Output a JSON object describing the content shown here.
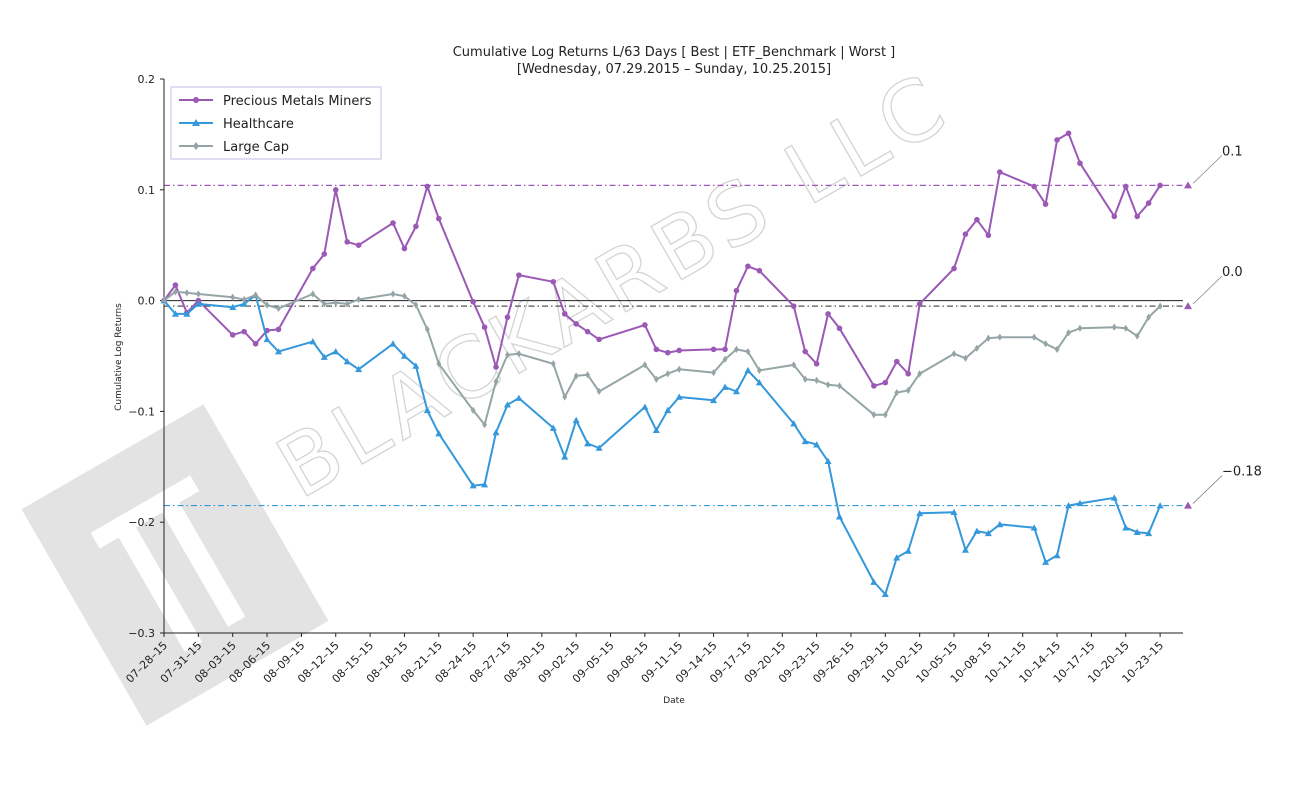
{
  "watermark": {
    "text": "BLACKARBS LLC"
  },
  "chart_data": {
    "type": "line",
    "title": "Cumulative Log Returns L/63 Days [ Best | ETF_Benchmark | Worst ]",
    "subtitle": "[Wednesday, 07.29.2015 – Sunday, 10.25.2015]",
    "xlabel": "Date",
    "ylabel": "Cumulative Log Returns",
    "ylim": [
      -0.3,
      0.2
    ],
    "yticks": [
      "0.2",
      "0.1",
      "0.0",
      "−0.1",
      "−0.2",
      "−0.3"
    ],
    "xtick_labels": [
      "07–28–15",
      "07–31–15",
      "08–03–15",
      "08–06–15",
      "08–09–15",
      "08–12–15",
      "08–15–15",
      "08–18–15",
      "08–21–15",
      "08–24–15",
      "08–27–15",
      "08–30–15",
      "09–02–15",
      "09–05–15",
      "09–08–15",
      "09–11–15",
      "09–14–15",
      "09–17–15",
      "09–20–15",
      "09–23–15",
      "09–26–15",
      "09–29–15",
      "10–02–15",
      "10–05–15",
      "10–08–15",
      "10–11–15",
      "10–14–15",
      "10–17–15",
      "10–20–15",
      "10–23–15"
    ],
    "x_start": "2015-07-28",
    "x_end": "2015-10-25",
    "legend_position": "top-left",
    "zero_line": true,
    "series": [
      {
        "name": "Precious Metals Miners",
        "color": "#9b59b6",
        "marker": "circle",
        "points": [
          [
            "2015-07-28",
            0.0
          ],
          [
            "2015-07-29",
            0.014
          ],
          [
            "2015-07-30",
            -0.011
          ],
          [
            "2015-07-31",
            0.0
          ],
          [
            "2015-08-03",
            -0.031
          ],
          [
            "2015-08-04",
            -0.028
          ],
          [
            "2015-08-05",
            -0.039
          ],
          [
            "2015-08-06",
            -0.027
          ],
          [
            "2015-08-07",
            -0.026
          ],
          [
            "2015-08-10",
            0.029
          ],
          [
            "2015-08-11",
            0.042
          ],
          [
            "2015-08-12",
            0.1
          ],
          [
            "2015-08-13",
            0.053
          ],
          [
            "2015-08-14",
            0.05
          ],
          [
            "2015-08-17",
            0.07
          ],
          [
            "2015-08-18",
            0.047
          ],
          [
            "2015-08-19",
            0.067
          ],
          [
            "2015-08-20",
            0.103
          ],
          [
            "2015-08-21",
            0.074
          ],
          [
            "2015-08-24",
            -0.001
          ],
          [
            "2015-08-25",
            -0.024
          ],
          [
            "2015-08-26",
            -0.06
          ],
          [
            "2015-08-27",
            -0.015
          ],
          [
            "2015-08-28",
            0.023
          ],
          [
            "2015-08-31",
            0.017
          ],
          [
            "2015-09-01",
            -0.012
          ],
          [
            "2015-09-02",
            -0.021
          ],
          [
            "2015-09-03",
            -0.028
          ],
          [
            "2015-09-04",
            -0.035
          ],
          [
            "2015-09-08",
            -0.022
          ],
          [
            "2015-09-09",
            -0.044
          ],
          [
            "2015-09-10",
            -0.047
          ],
          [
            "2015-09-11",
            -0.045
          ],
          [
            "2015-09-14",
            -0.044
          ],
          [
            "2015-09-15",
            -0.044
          ],
          [
            "2015-09-16",
            0.009
          ],
          [
            "2015-09-17",
            0.031
          ],
          [
            "2015-09-18",
            0.027
          ],
          [
            "2015-09-21",
            -0.005
          ],
          [
            "2015-09-22",
            -0.046
          ],
          [
            "2015-09-23",
            -0.057
          ],
          [
            "2015-09-24",
            -0.012
          ],
          [
            "2015-09-25",
            -0.025
          ],
          [
            "2015-09-28",
            -0.077
          ],
          [
            "2015-09-29",
            -0.074
          ],
          [
            "2015-09-30",
            -0.055
          ],
          [
            "2015-10-01",
            -0.066
          ],
          [
            "2015-10-02",
            -0.003
          ],
          [
            "2015-10-05",
            0.029
          ],
          [
            "2015-10-06",
            0.06
          ],
          [
            "2015-10-07",
            0.073
          ],
          [
            "2015-10-08",
            0.059
          ],
          [
            "2015-10-09",
            0.116
          ],
          [
            "2015-10-12",
            0.103
          ],
          [
            "2015-10-13",
            0.087
          ],
          [
            "2015-10-14",
            0.145
          ],
          [
            "2015-10-15",
            0.151
          ],
          [
            "2015-10-16",
            0.124
          ],
          [
            "2015-10-19",
            0.076
          ],
          [
            "2015-10-20",
            0.103
          ],
          [
            "2015-10-21",
            0.076
          ],
          [
            "2015-10-22",
            0.088
          ],
          [
            "2015-10-23",
            0.104
          ]
        ]
      },
      {
        "name": "Healthcare",
        "color": "#3498db",
        "marker": "triangle",
        "points": [
          [
            "2015-07-28",
            0.0
          ],
          [
            "2015-07-29",
            -0.012
          ],
          [
            "2015-07-30",
            -0.012
          ],
          [
            "2015-07-31",
            -0.003
          ],
          [
            "2015-08-03",
            -0.006
          ],
          [
            "2015-08-04",
            -0.003
          ],
          [
            "2015-08-05",
            0.005
          ],
          [
            "2015-08-06",
            -0.035
          ],
          [
            "2015-08-07",
            -0.046
          ],
          [
            "2015-08-10",
            -0.037
          ],
          [
            "2015-08-11",
            -0.051
          ],
          [
            "2015-08-12",
            -0.046
          ],
          [
            "2015-08-13",
            -0.055
          ],
          [
            "2015-08-14",
            -0.062
          ],
          [
            "2015-08-17",
            -0.039
          ],
          [
            "2015-08-18",
            -0.05
          ],
          [
            "2015-08-19",
            -0.059
          ],
          [
            "2015-08-20",
            -0.099
          ],
          [
            "2015-08-21",
            -0.12
          ],
          [
            "2015-08-24",
            -0.167
          ],
          [
            "2015-08-25",
            -0.166
          ],
          [
            "2015-08-26",
            -0.119
          ],
          [
            "2015-08-27",
            -0.094
          ],
          [
            "2015-08-28",
            -0.088
          ],
          [
            "2015-08-31",
            -0.115
          ],
          [
            "2015-09-01",
            -0.141
          ],
          [
            "2015-09-02",
            -0.108
          ],
          [
            "2015-09-03",
            -0.129
          ],
          [
            "2015-09-04",
            -0.133
          ],
          [
            "2015-09-08",
            -0.096
          ],
          [
            "2015-09-09",
            -0.117
          ],
          [
            "2015-09-10",
            -0.099
          ],
          [
            "2015-09-11",
            -0.087
          ],
          [
            "2015-09-14",
            -0.09
          ],
          [
            "2015-09-15",
            -0.078
          ],
          [
            "2015-09-16",
            -0.082
          ],
          [
            "2015-09-17",
            -0.063
          ],
          [
            "2015-09-18",
            -0.074
          ],
          [
            "2015-09-21",
            -0.111
          ],
          [
            "2015-09-22",
            -0.127
          ],
          [
            "2015-09-23",
            -0.13
          ],
          [
            "2015-09-24",
            -0.145
          ],
          [
            "2015-09-25",
            -0.195
          ],
          [
            "2015-09-28",
            -0.254
          ],
          [
            "2015-09-29",
            -0.265
          ],
          [
            "2015-09-30",
            -0.232
          ],
          [
            "2015-10-01",
            -0.226
          ],
          [
            "2015-10-02",
            -0.192
          ],
          [
            "2015-10-05",
            -0.191
          ],
          [
            "2015-10-06",
            -0.225
          ],
          [
            "2015-10-07",
            -0.208
          ],
          [
            "2015-10-08",
            -0.21
          ],
          [
            "2015-10-09",
            -0.202
          ],
          [
            "2015-10-12",
            -0.205
          ],
          [
            "2015-10-13",
            -0.236
          ],
          [
            "2015-10-14",
            -0.23
          ],
          [
            "2015-10-15",
            -0.185
          ],
          [
            "2015-10-16",
            -0.183
          ],
          [
            "2015-10-19",
            -0.178
          ],
          [
            "2015-10-20",
            -0.205
          ],
          [
            "2015-10-21",
            -0.209
          ],
          [
            "2015-10-22",
            -0.21
          ],
          [
            "2015-10-23",
            -0.185
          ]
        ]
      },
      {
        "name": "Large Cap",
        "color": "#95a5a6",
        "marker": "diamond",
        "points": [
          [
            "2015-07-28",
            0.0
          ],
          [
            "2015-07-29",
            0.008
          ],
          [
            "2015-07-30",
            0.007
          ],
          [
            "2015-07-31",
            0.006
          ],
          [
            "2015-08-03",
            0.003
          ],
          [
            "2015-08-04",
            0.001
          ],
          [
            "2015-08-05",
            0.005
          ],
          [
            "2015-08-06",
            -0.004
          ],
          [
            "2015-08-07",
            -0.007
          ],
          [
            "2015-08-10",
            0.006
          ],
          [
            "2015-08-11",
            -0.003
          ],
          [
            "2015-08-12",
            -0.002
          ],
          [
            "2015-08-13",
            -0.003
          ],
          [
            "2015-08-14",
            0.001
          ],
          [
            "2015-08-17",
            0.006
          ],
          [
            "2015-08-18",
            0.004
          ],
          [
            "2015-08-19",
            -0.004
          ],
          [
            "2015-08-20",
            -0.026
          ],
          [
            "2015-08-21",
            -0.057
          ],
          [
            "2015-08-24",
            -0.099
          ],
          [
            "2015-08-25",
            -0.112
          ],
          [
            "2015-08-26",
            -0.073
          ],
          [
            "2015-08-27",
            -0.049
          ],
          [
            "2015-08-28",
            -0.048
          ],
          [
            "2015-08-31",
            -0.057
          ],
          [
            "2015-09-01",
            -0.087
          ],
          [
            "2015-09-02",
            -0.068
          ],
          [
            "2015-09-03",
            -0.067
          ],
          [
            "2015-09-04",
            -0.082
          ],
          [
            "2015-09-08",
            -0.058
          ],
          [
            "2015-09-09",
            -0.071
          ],
          [
            "2015-09-10",
            -0.066
          ],
          [
            "2015-09-11",
            -0.062
          ],
          [
            "2015-09-14",
            -0.065
          ],
          [
            "2015-09-15",
            -0.053
          ],
          [
            "2015-09-16",
            -0.044
          ],
          [
            "2015-09-17",
            -0.046
          ],
          [
            "2015-09-18",
            -0.063
          ],
          [
            "2015-09-21",
            -0.058
          ],
          [
            "2015-09-22",
            -0.071
          ],
          [
            "2015-09-23",
            -0.072
          ],
          [
            "2015-09-24",
            -0.076
          ],
          [
            "2015-09-25",
            -0.077
          ],
          [
            "2015-09-28",
            -0.103
          ],
          [
            "2015-09-29",
            -0.103
          ],
          [
            "2015-09-30",
            -0.083
          ],
          [
            "2015-10-01",
            -0.081
          ],
          [
            "2015-10-02",
            -0.066
          ],
          [
            "2015-10-05",
            -0.048
          ],
          [
            "2015-10-06",
            -0.052
          ],
          [
            "2015-10-07",
            -0.043
          ],
          [
            "2015-10-08",
            -0.034
          ],
          [
            "2015-10-09",
            -0.033
          ],
          [
            "2015-10-12",
            -0.033
          ],
          [
            "2015-10-13",
            -0.039
          ],
          [
            "2015-10-14",
            -0.044
          ],
          [
            "2015-10-15",
            -0.029
          ],
          [
            "2015-10-16",
            -0.025
          ],
          [
            "2015-10-19",
            -0.024
          ],
          [
            "2015-10-20",
            -0.025
          ],
          [
            "2015-10-21",
            -0.032
          ],
          [
            "2015-10-22",
            -0.015
          ],
          [
            "2015-10-23",
            -0.005
          ]
        ]
      }
    ],
    "reference_lines": [
      {
        "value": 0.104,
        "color": "#9b59b6",
        "style": "dash-dot"
      },
      {
        "value": -0.005,
        "color": "#555555",
        "style": "dash-dot"
      },
      {
        "value": -0.185,
        "color": "#3498db",
        "style": "dash-dot"
      }
    ],
    "end_annotations": [
      {
        "text": "0.1",
        "value": 0.104,
        "color": "#9b59b6"
      },
      {
        "text": "0.0",
        "value": -0.005,
        "color": "#9b59b6"
      },
      {
        "text": "−0.18",
        "value": -0.185,
        "color": "#9b59b6"
      }
    ]
  }
}
